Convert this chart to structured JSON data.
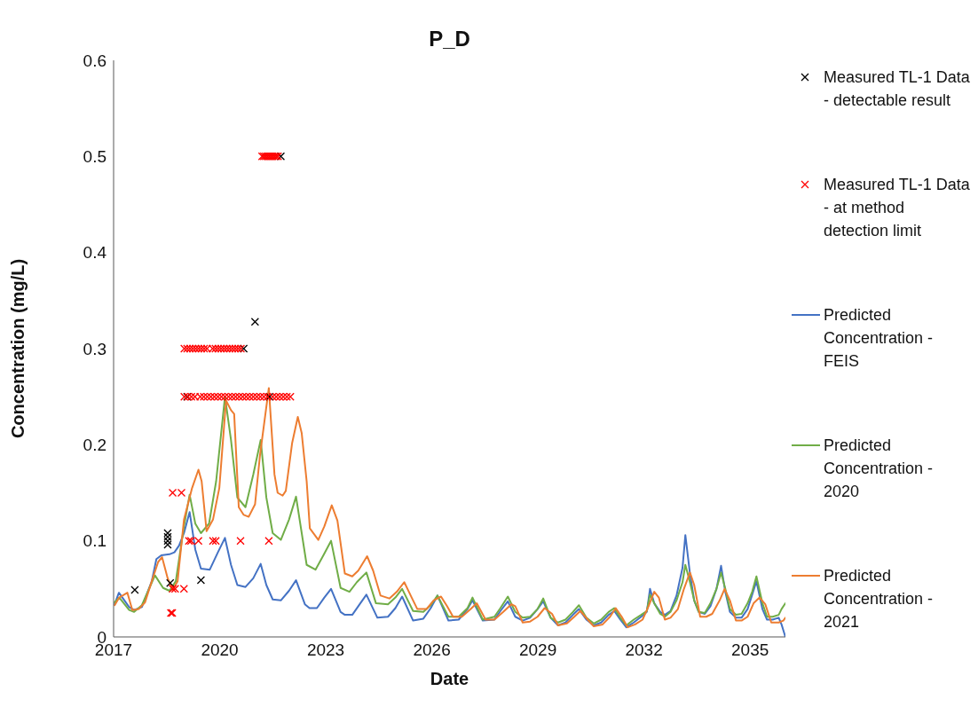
{
  "chart_data": {
    "type": "line",
    "title": "P_D",
    "xlabel": "Date",
    "ylabel": "Concentration (mg/L)",
    "xlim": [
      2017,
      2036
    ],
    "xticks": [
      2017,
      2020,
      2023,
      2026,
      2029,
      2032,
      2035
    ],
    "ylim": [
      0,
      0.6
    ],
    "yticks": [
      0,
      0.1,
      0.2,
      0.3,
      0.4,
      0.5,
      0.6
    ],
    "legend": "right",
    "series": [
      {
        "name": "Measured TL-1 Data - detectable result",
        "type": "scatter",
        "marker": "cross",
        "color": "#000000",
        "x": [
          2017.6,
          2018.53,
          2018.53,
          2018.53,
          2018.53,
          2018.6,
          2019.08,
          2019.47,
          2020.68,
          2021.0,
          2021.41,
          2021.73
        ],
        "values": [
          0.049,
          0.096,
          0.1,
          0.104,
          0.108,
          0.056,
          0.25,
          0.059,
          0.3,
          0.328,
          0.25,
          0.5
        ]
      },
      {
        "name": "Measured TL-1 Data - at method detection limit",
        "type": "scatter",
        "marker": "cross",
        "color": "#ff0000",
        "x": [
          2018.62,
          2018.66,
          2018.67,
          2018.74,
          2018.99,
          2019.13,
          2019.19,
          2019.4,
          2019.81,
          2019.89,
          2020.59,
          2021.39,
          2018.67,
          2018.92,
          2019.0,
          2019.1,
          2019.2,
          2019.3,
          2019.45,
          2019.55,
          2019.65,
          2019.75,
          2019.85,
          2019.95,
          2020.05,
          2020.15,
          2020.25,
          2020.35,
          2020.45,
          2020.55,
          2020.65,
          2020.75,
          2020.85,
          2020.95,
          2021.05,
          2021.15,
          2021.25,
          2021.35,
          2021.5,
          2021.6,
          2021.7,
          2021.8,
          2021.9,
          2022.0,
          2019.0,
          2019.08,
          2019.16,
          2019.24,
          2019.32,
          2019.4,
          2019.48,
          2019.56,
          2019.64,
          2019.8,
          2019.88,
          2019.96,
          2020.04,
          2020.12,
          2020.2,
          2020.28,
          2020.36,
          2020.44,
          2020.52,
          2020.6,
          2021.2,
          2021.25,
          2021.3,
          2021.35,
          2021.4,
          2021.45,
          2021.5,
          2021.55,
          2021.6,
          2021.65
        ],
        "values": [
          0.025,
          0.025,
          0.05,
          0.05,
          0.05,
          0.1,
          0.1,
          0.1,
          0.1,
          0.1,
          0.1,
          0.1,
          0.15,
          0.15,
          0.25,
          0.25,
          0.25,
          0.25,
          0.25,
          0.25,
          0.25,
          0.25,
          0.25,
          0.25,
          0.25,
          0.25,
          0.25,
          0.25,
          0.25,
          0.25,
          0.25,
          0.25,
          0.25,
          0.25,
          0.25,
          0.25,
          0.25,
          0.25,
          0.25,
          0.25,
          0.25,
          0.25,
          0.25,
          0.25,
          0.3,
          0.3,
          0.3,
          0.3,
          0.3,
          0.3,
          0.3,
          0.3,
          0.3,
          0.3,
          0.3,
          0.3,
          0.3,
          0.3,
          0.3,
          0.3,
          0.3,
          0.3,
          0.3,
          0.3,
          0.5,
          0.5,
          0.5,
          0.5,
          0.5,
          0.5,
          0.5,
          0.5,
          0.5,
          0.5
        ]
      },
      {
        "name": "Predicted Concentration - FEIS",
        "color": "#4472c4",
        "x": [
          2017.03,
          2017.15,
          2017.44,
          2017.58,
          2017.8,
          2018.08,
          2018.21,
          2018.35,
          2018.58,
          2018.72,
          2018.85,
          2018.99,
          2019.15,
          2019.31,
          2019.47,
          2019.72,
          2019.95,
          2020.15,
          2020.32,
          2020.5,
          2020.73,
          2020.95,
          2021.16,
          2021.32,
          2021.5,
          2021.73,
          2021.96,
          2022.16,
          2022.41,
          2022.54,
          2022.75,
          2022.96,
          2023.15,
          2023.42,
          2023.54,
          2023.75,
          2023.96,
          2024.15,
          2024.46,
          2024.76,
          2024.97,
          2025.16,
          2025.47,
          2025.76,
          2025.97,
          2026.16,
          2026.47,
          2026.76,
          2027.01,
          2027.15,
          2027.44,
          2027.77,
          2027.94,
          2028.15,
          2028.36,
          2028.57,
          2028.78,
          2028.99,
          2029.15,
          2029.36,
          2029.57,
          2029.78,
          2029.99,
          2030.16,
          2030.37,
          2030.58,
          2030.79,
          2031.0,
          2031.16,
          2031.33,
          2031.5,
          2031.71,
          2031.92,
          2032.08,
          2032.17,
          2032.29,
          2032.46,
          2032.59,
          2032.75,
          2032.92,
          2033.09,
          2033.17,
          2033.3,
          2033.42,
          2033.55,
          2033.72,
          2033.88,
          2034.05,
          2034.18,
          2034.3,
          2034.43,
          2034.6,
          2034.76,
          2034.93,
          2035.06,
          2035.18,
          2035.35,
          2035.48,
          2035.64,
          2035.81,
          2035.89,
          2036.0
        ],
        "values": [
          0.034,
          0.046,
          0.031,
          0.028,
          0.031,
          0.058,
          0.081,
          0.085,
          0.086,
          0.088,
          0.095,
          0.108,
          0.13,
          0.091,
          0.071,
          0.07,
          0.088,
          0.103,
          0.075,
          0.054,
          0.052,
          0.061,
          0.076,
          0.054,
          0.039,
          0.038,
          0.048,
          0.059,
          0.034,
          0.03,
          0.03,
          0.041,
          0.05,
          0.026,
          0.023,
          0.023,
          0.034,
          0.044,
          0.02,
          0.021,
          0.03,
          0.042,
          0.017,
          0.019,
          0.03,
          0.043,
          0.017,
          0.018,
          0.029,
          0.038,
          0.017,
          0.018,
          0.027,
          0.037,
          0.021,
          0.017,
          0.02,
          0.029,
          0.037,
          0.02,
          0.012,
          0.015,
          0.023,
          0.029,
          0.018,
          0.012,
          0.015,
          0.023,
          0.027,
          0.018,
          0.01,
          0.015,
          0.021,
          0.026,
          0.05,
          0.035,
          0.026,
          0.023,
          0.027,
          0.043,
          0.072,
          0.106,
          0.066,
          0.038,
          0.026,
          0.024,
          0.032,
          0.05,
          0.074,
          0.047,
          0.026,
          0.02,
          0.02,
          0.029,
          0.044,
          0.058,
          0.029,
          0.018,
          0.018,
          0.02,
          0.013,
          0
        ]
      },
      {
        "name": "Predicted Concentration - 2020",
        "color": "#70ad47",
        "x": [
          2017.03,
          2017.16,
          2017.44,
          2017.58,
          2017.8,
          2018.17,
          2018.4,
          2018.58,
          2018.76,
          2018.99,
          2019.15,
          2019.31,
          2019.47,
          2019.7,
          2019.9,
          2020.15,
          2020.32,
          2020.5,
          2020.73,
          2020.95,
          2021.16,
          2021.32,
          2021.5,
          2021.73,
          2021.96,
          2022.16,
          2022.46,
          2022.71,
          2022.92,
          2023.15,
          2023.42,
          2023.67,
          2023.88,
          2024.15,
          2024.42,
          2024.76,
          2024.97,
          2025.16,
          2025.47,
          2025.76,
          2025.97,
          2026.16,
          2026.47,
          2026.76,
          2027.01,
          2027.15,
          2027.44,
          2027.77,
          2027.94,
          2028.15,
          2028.36,
          2028.57,
          2028.78,
          2028.99,
          2029.15,
          2029.36,
          2029.57,
          2029.78,
          2029.99,
          2030.16,
          2030.37,
          2030.58,
          2030.79,
          2031.0,
          2031.16,
          2031.33,
          2031.5,
          2031.71,
          2031.92,
          2032.08,
          2032.17,
          2032.29,
          2032.46,
          2032.59,
          2032.75,
          2032.92,
          2033.09,
          2033.17,
          2033.3,
          2033.42,
          2033.55,
          2033.72,
          2033.88,
          2034.05,
          2034.18,
          2034.3,
          2034.43,
          2034.6,
          2034.76,
          2034.93,
          2035.06,
          2035.18,
          2035.35,
          2035.48,
          2035.64,
          2035.81,
          2035.89,
          2036.0
        ],
        "values": [
          0.036,
          0.041,
          0.028,
          0.026,
          0.033,
          0.064,
          0.051,
          0.048,
          0.058,
          0.115,
          0.148,
          0.118,
          0.108,
          0.118,
          0.162,
          0.25,
          0.205,
          0.145,
          0.135,
          0.169,
          0.205,
          0.145,
          0.108,
          0.101,
          0.122,
          0.146,
          0.075,
          0.07,
          0.084,
          0.1,
          0.051,
          0.047,
          0.057,
          0.067,
          0.035,
          0.034,
          0.041,
          0.05,
          0.027,
          0.026,
          0.033,
          0.043,
          0.021,
          0.021,
          0.03,
          0.041,
          0.018,
          0.021,
          0.03,
          0.042,
          0.026,
          0.02,
          0.021,
          0.029,
          0.04,
          0.02,
          0.015,
          0.018,
          0.026,
          0.033,
          0.02,
          0.014,
          0.018,
          0.026,
          0.03,
          0.02,
          0.012,
          0.018,
          0.023,
          0.027,
          0.044,
          0.035,
          0.024,
          0.021,
          0.026,
          0.038,
          0.057,
          0.075,
          0.057,
          0.038,
          0.026,
          0.025,
          0.035,
          0.05,
          0.067,
          0.05,
          0.029,
          0.023,
          0.024,
          0.035,
          0.047,
          0.063,
          0.035,
          0.021,
          0.021,
          0.023,
          0.029,
          0.035
        ]
      },
      {
        "name": "Predicted Concentration - 2021",
        "color": "#ed7d31",
        "x": [
          2017.03,
          2017.16,
          2017.39,
          2017.53,
          2017.71,
          2017.89,
          2018.08,
          2018.26,
          2018.37,
          2018.53,
          2018.67,
          2018.81,
          2018.99,
          2019.22,
          2019.4,
          2019.49,
          2019.63,
          2019.81,
          2019.99,
          2020.18,
          2020.32,
          2020.41,
          2020.54,
          2020.68,
          2020.82,
          2021.0,
          2021.14,
          2021.39,
          2021.55,
          2021.64,
          2021.78,
          2021.87,
          2022.05,
          2022.21,
          2022.32,
          2022.46,
          2022.55,
          2022.79,
          2022.96,
          2023.17,
          2023.33,
          2023.54,
          2023.75,
          2023.92,
          2024.17,
          2024.34,
          2024.55,
          2024.8,
          2025.01,
          2025.22,
          2025.43,
          2025.59,
          2025.85,
          2026.05,
          2026.26,
          2026.43,
          2026.6,
          2026.85,
          2027.1,
          2027.27,
          2027.52,
          2027.77,
          2028.02,
          2028.25,
          2028.36,
          2028.57,
          2028.78,
          2028.99,
          2029.19,
          2029.4,
          2029.57,
          2029.82,
          2030.03,
          2030.2,
          2030.41,
          2030.58,
          2030.83,
          2031.04,
          2031.2,
          2031.37,
          2031.54,
          2031.75,
          2031.96,
          2032.13,
          2032.29,
          2032.42,
          2032.59,
          2032.75,
          2032.96,
          2033.13,
          2033.3,
          2033.42,
          2033.59,
          2033.76,
          2033.93,
          2034.14,
          2034.28,
          2034.43,
          2034.6,
          2034.76,
          2034.93,
          2035.1,
          2035.27,
          2035.43,
          2035.6,
          2035.81,
          2035.94,
          2036.0
        ],
        "values": [
          0.033,
          0.041,
          0.046,
          0.028,
          0.029,
          0.036,
          0.058,
          0.078,
          0.083,
          0.061,
          0.049,
          0.058,
          0.122,
          0.155,
          0.174,
          0.162,
          0.11,
          0.122,
          0.155,
          0.246,
          0.236,
          0.232,
          0.135,
          0.127,
          0.125,
          0.138,
          0.189,
          0.259,
          0.169,
          0.15,
          0.147,
          0.152,
          0.202,
          0.229,
          0.212,
          0.162,
          0.113,
          0.101,
          0.115,
          0.137,
          0.121,
          0.066,
          0.063,
          0.069,
          0.084,
          0.069,
          0.043,
          0.04,
          0.047,
          0.057,
          0.041,
          0.029,
          0.029,
          0.038,
          0.042,
          0.032,
          0.021,
          0.021,
          0.029,
          0.035,
          0.018,
          0.018,
          0.026,
          0.034,
          0.032,
          0.015,
          0.016,
          0.021,
          0.03,
          0.024,
          0.012,
          0.014,
          0.021,
          0.027,
          0.018,
          0.011,
          0.013,
          0.021,
          0.03,
          0.021,
          0.01,
          0.013,
          0.018,
          0.032,
          0.047,
          0.041,
          0.018,
          0.02,
          0.029,
          0.05,
          0.067,
          0.054,
          0.021,
          0.021,
          0.024,
          0.038,
          0.05,
          0.038,
          0.017,
          0.017,
          0.021,
          0.035,
          0.041,
          0.034,
          0.015,
          0.015,
          0.017,
          0.02
        ]
      }
    ]
  }
}
